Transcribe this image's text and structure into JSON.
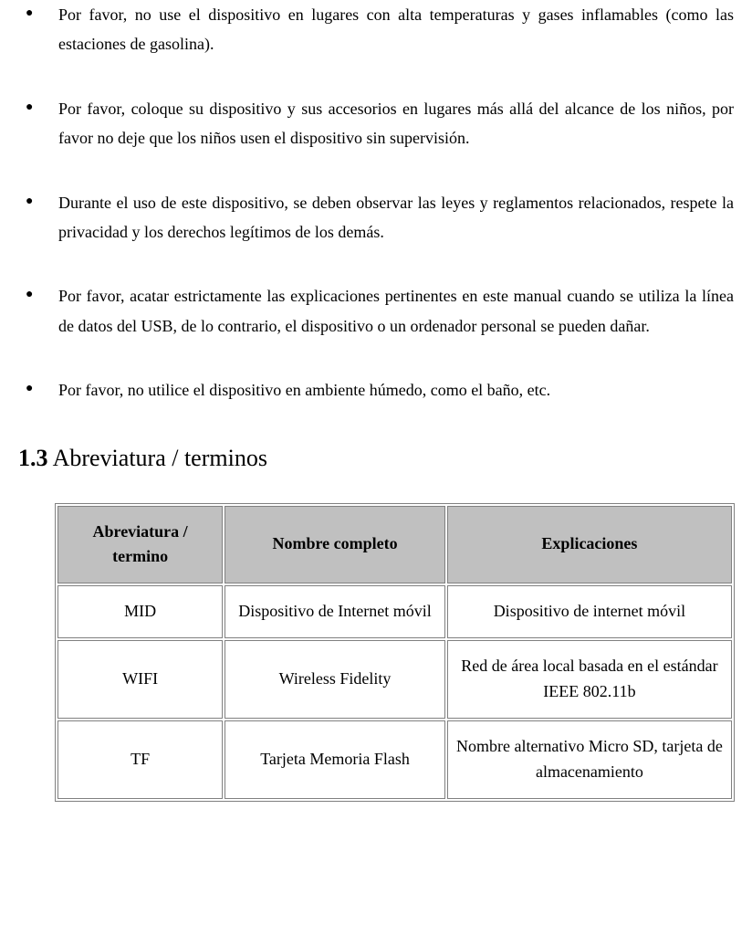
{
  "bullets": [
    "Por favor, no use el dispositivo en lugares con alta temperaturas y gases inflamables (como las estaciones de gasolina).",
    "Por favor, coloque su dispositivo y sus accesorios en lugares más allá del alcance de los niños, por favor no deje que los niños usen el dispositivo sin supervisión.",
    "Durante el uso de este dispositivo, se deben observar las leyes y reglamentos relacionados, respete la privacidad y los derechos legítimos de los demás.",
    "Por favor, acatar estrictamente las explicaciones pertinentes en este manual cuando se utiliza la línea de datos del USB, de lo contrario, el dispositivo o un ordenador personal se pueden dañar.",
    "Por favor, no utilice el dispositivo en ambiente húmedo, como el baño, etc."
  ],
  "section": {
    "number": "1.3",
    "title": "Abreviatura / terminos"
  },
  "table": {
    "headers": {
      "col1": "Abreviatura / termino",
      "col2": "Nombre completo",
      "col3": "Explicaciones"
    },
    "rows": [
      {
        "c1": "MID",
        "c2": "Dispositivo de Internet móvil",
        "c3": "Dispositivo de internet móvil"
      },
      {
        "c1": "WIFI",
        "c2": "Wireless Fidelity",
        "c3": "Red de área local basada en el estándar IEEE 802.11b"
      },
      {
        "c1": "TF",
        "c2": "Tarjeta Memoria Flash",
        "c3": "Nombre alternativo Micro SD, tarjeta de almacenamiento"
      }
    ]
  }
}
